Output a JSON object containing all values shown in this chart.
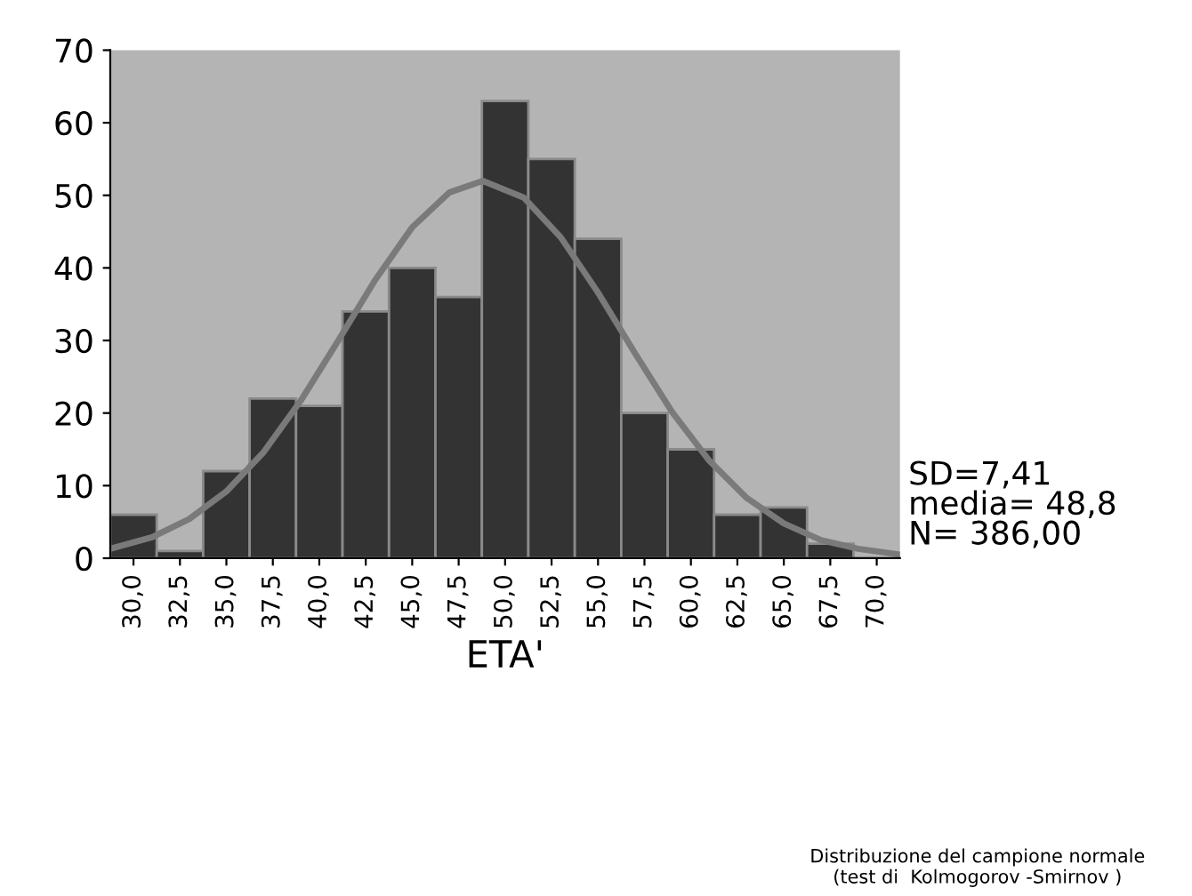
{
  "chart_data": {
    "type": "histogram",
    "xlabel": "ETA'",
    "bins": [
      28.75,
      31.25,
      33.75,
      36.25,
      38.75,
      41.25,
      43.75,
      46.25,
      48.75,
      51.25,
      53.75,
      56.25,
      58.75,
      61.25,
      63.75,
      66.25,
      68.75,
      71.25
    ],
    "values": [
      6,
      1,
      12,
      22,
      21,
      34,
      40,
      36,
      63,
      55,
      44,
      20,
      15,
      6,
      7,
      2,
      null
    ],
    "color": "#333333",
    "series": [
      {
        "type": "line",
        "color": "#7a7a7a",
        "x": [
          28.75,
          31,
          33,
          35,
          37,
          39,
          41,
          43,
          45,
          47,
          48.8,
          51,
          53,
          55,
          57,
          59,
          61,
          63,
          65,
          67,
          69,
          71.25
        ],
        "values": [
          1.3,
          2.9,
          5.4,
          9.2,
          14.6,
          21.7,
          29.9,
          38.3,
          45.6,
          50.4,
          52,
          49.7,
          44.2,
          36.6,
          28.2,
          20.1,
          13.4,
          8.3,
          4.8,
          2.5,
          1.3,
          0.5
        ]
      }
    ],
    "xlim": [
      28.75,
      71.25
    ],
    "ylim": [
      0,
      70
    ],
    "xticks": [
      {
        "value": 30,
        "label": "30,0"
      },
      {
        "value": 32.5,
        "label": "32,5"
      },
      {
        "value": 35,
        "label": "35,0"
      },
      {
        "value": 37.5,
        "label": "37,5"
      },
      {
        "value": 40,
        "label": "40,0"
      },
      {
        "value": 42.5,
        "label": "42,5"
      },
      {
        "value": 45,
        "label": "45,0"
      },
      {
        "value": 47.5,
        "label": "47,5"
      },
      {
        "value": 50,
        "label": "50,0"
      },
      {
        "value": 52.5,
        "label": "52,5"
      },
      {
        "value": 55,
        "label": "55,0"
      },
      {
        "value": 57.5,
        "label": "57,5"
      },
      {
        "value": 60,
        "label": "60,0"
      },
      {
        "value": 62.5,
        "label": "62,5"
      },
      {
        "value": 65,
        "label": "65,0"
      },
      {
        "value": 67.5,
        "label": "67,5"
      },
      {
        "value": 70,
        "label": "70,0"
      }
    ],
    "yticks": [
      0,
      10,
      20,
      30,
      40,
      50,
      60,
      70
    ],
    "grid": false,
    "annotations": [
      "SD=7,41\nmedia= 48,8\nN= 386,00",
      "Distribuzione del campione normale\n(test di  Kolmogorov -Smirnov )"
    ]
  }
}
